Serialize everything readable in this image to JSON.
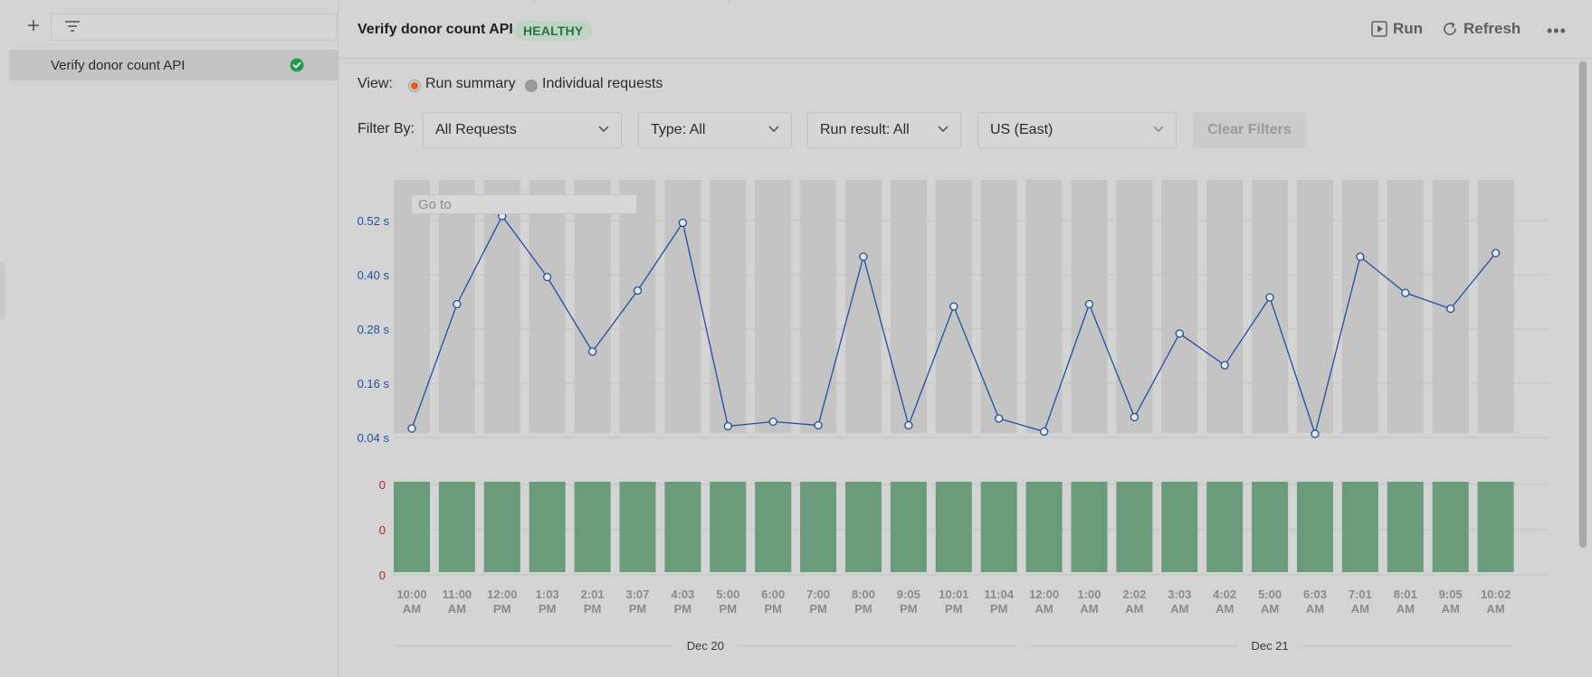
{
  "sidebar": {
    "add_label": "+",
    "items": [
      {
        "label": "Verify donor count API",
        "status": "success"
      }
    ]
  },
  "header": {
    "title": "Verify donor count API",
    "badge": "HEALTHY",
    "actions": {
      "run": "Run",
      "refresh": "Refresh",
      "more": "•••"
    }
  },
  "view": {
    "label": "View:",
    "options": [
      {
        "label": "Run summary",
        "selected": true
      },
      {
        "label": "Individual requests",
        "selected": false
      }
    ]
  },
  "filters": {
    "label": "Filter By:",
    "requests": "All Requests",
    "type": "Type: All",
    "run_result": "Run result: All",
    "region": "US (East)",
    "clear": "Clear Filters"
  },
  "chart": {
    "goto_placeholder": "Go to",
    "colors": {
      "line": "#1f4fa0",
      "bar": "#6a9b7b",
      "column": "#c4c4c4",
      "error_label": "#b32020"
    }
  },
  "chart_data": {
    "type": "line",
    "y_ticks": [
      "0.52 s",
      "0.40 s",
      "0.28 s",
      "0.16 s",
      "0.04 s"
    ],
    "y_tick_values": [
      0.52,
      0.4,
      0.28,
      0.16,
      0.04
    ],
    "ylim": [
      0.04,
      0.52
    ],
    "error_ticks": [
      "0",
      "0",
      "0"
    ],
    "x_labels": [
      [
        "10:00",
        "AM"
      ],
      [
        "11:00",
        "AM"
      ],
      [
        "12:00",
        "PM"
      ],
      [
        "1:03",
        "PM"
      ],
      [
        "2:01",
        "PM"
      ],
      [
        "3:07",
        "PM"
      ],
      [
        "4:03",
        "PM"
      ],
      [
        "5:00",
        "PM"
      ],
      [
        "6:00",
        "PM"
      ],
      [
        "7:00",
        "PM"
      ],
      [
        "8:00",
        "PM"
      ],
      [
        "9:05",
        "PM"
      ],
      [
        "10:01",
        "PM"
      ],
      [
        "11:04",
        "PM"
      ],
      [
        "12:00",
        "AM"
      ],
      [
        "1:00",
        "AM"
      ],
      [
        "2:02",
        "AM"
      ],
      [
        "3:03",
        "AM"
      ],
      [
        "4:02",
        "AM"
      ],
      [
        "5:00",
        "AM"
      ],
      [
        "6:03",
        "AM"
      ],
      [
        "7:01",
        "AM"
      ],
      [
        "8:01",
        "AM"
      ],
      [
        "9:05",
        "AM"
      ],
      [
        "10:02",
        "AM"
      ]
    ],
    "series": [
      {
        "values": [
          0.06,
          0.335,
          0.53,
          0.395,
          0.23,
          0.365,
          0.515,
          0.065,
          0.075,
          0.067,
          0.44,
          0.067,
          0.33,
          0.082,
          0.053,
          0.335,
          0.085,
          0.27,
          0.2,
          0.35,
          0.048,
          0.44,
          0.36,
          0.325,
          0.448
        ]
      }
    ],
    "errors": [
      0,
      0,
      0,
      0,
      0,
      0,
      0,
      0,
      0,
      0,
      0,
      0,
      0,
      0,
      0,
      0,
      0,
      0,
      0,
      0,
      0,
      0,
      0,
      0,
      0
    ],
    "date_groups": [
      {
        "label": "Dec 20",
        "start": 0,
        "end": 13
      },
      {
        "label": "Dec 21",
        "start": 14,
        "end": 24
      }
    ]
  }
}
